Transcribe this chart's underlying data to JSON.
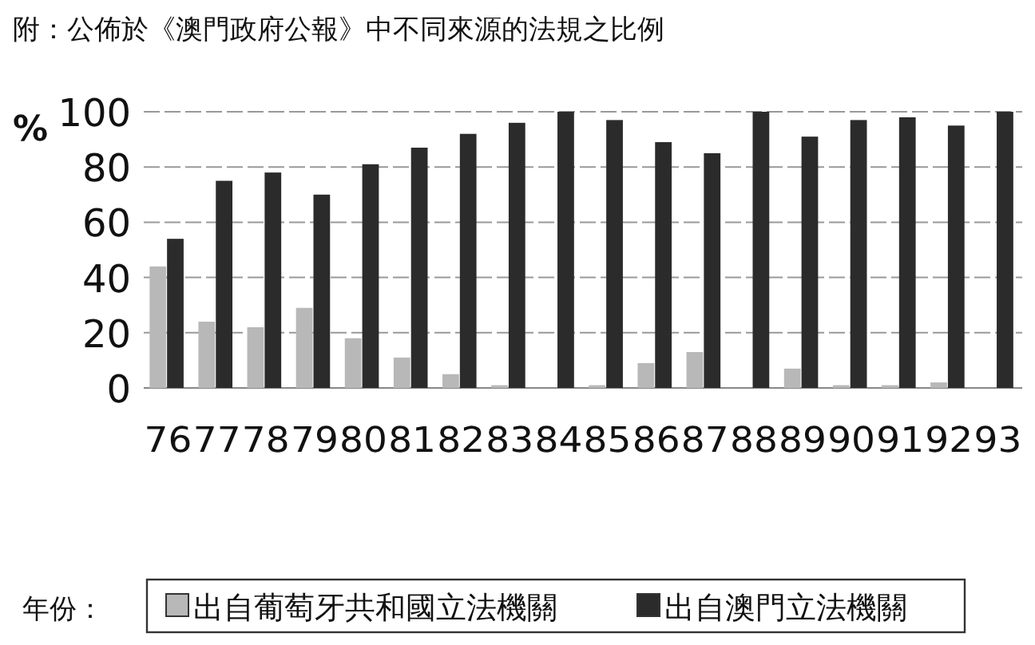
{
  "chart_data": {
    "type": "bar",
    "title": "附：公佈於《澳門政府公報》中不同來源的法規之比例",
    "xlabel": "年份：",
    "ylabel": "%",
    "categories": [
      "76",
      "77",
      "78",
      "79",
      "80",
      "81",
      "82",
      "83",
      "84",
      "85",
      "86",
      "87",
      "88",
      "89",
      "90",
      "91",
      "92",
      "93"
    ],
    "series": [
      {
        "name": "出自葡萄牙共和國立法機關",
        "color": "#b8b8b8",
        "values": [
          44,
          24,
          22,
          29,
          18,
          11,
          5,
          1,
          0,
          1,
          9,
          13,
          0,
          7,
          1,
          1,
          2,
          0
        ]
      },
      {
        "name": "出自澳門立法機關",
        "color": "#2b2b2b",
        "values": [
          54,
          75,
          78,
          70,
          81,
          87,
          92,
          96,
          100,
          97,
          89,
          85,
          100,
          91,
          97,
          98,
          95,
          100
        ]
      }
    ],
    "ylim": [
      0,
      100
    ],
    "yticks": [
      0,
      20,
      40,
      60,
      80,
      100
    ],
    "grid": "y",
    "legend": "bottom"
  }
}
